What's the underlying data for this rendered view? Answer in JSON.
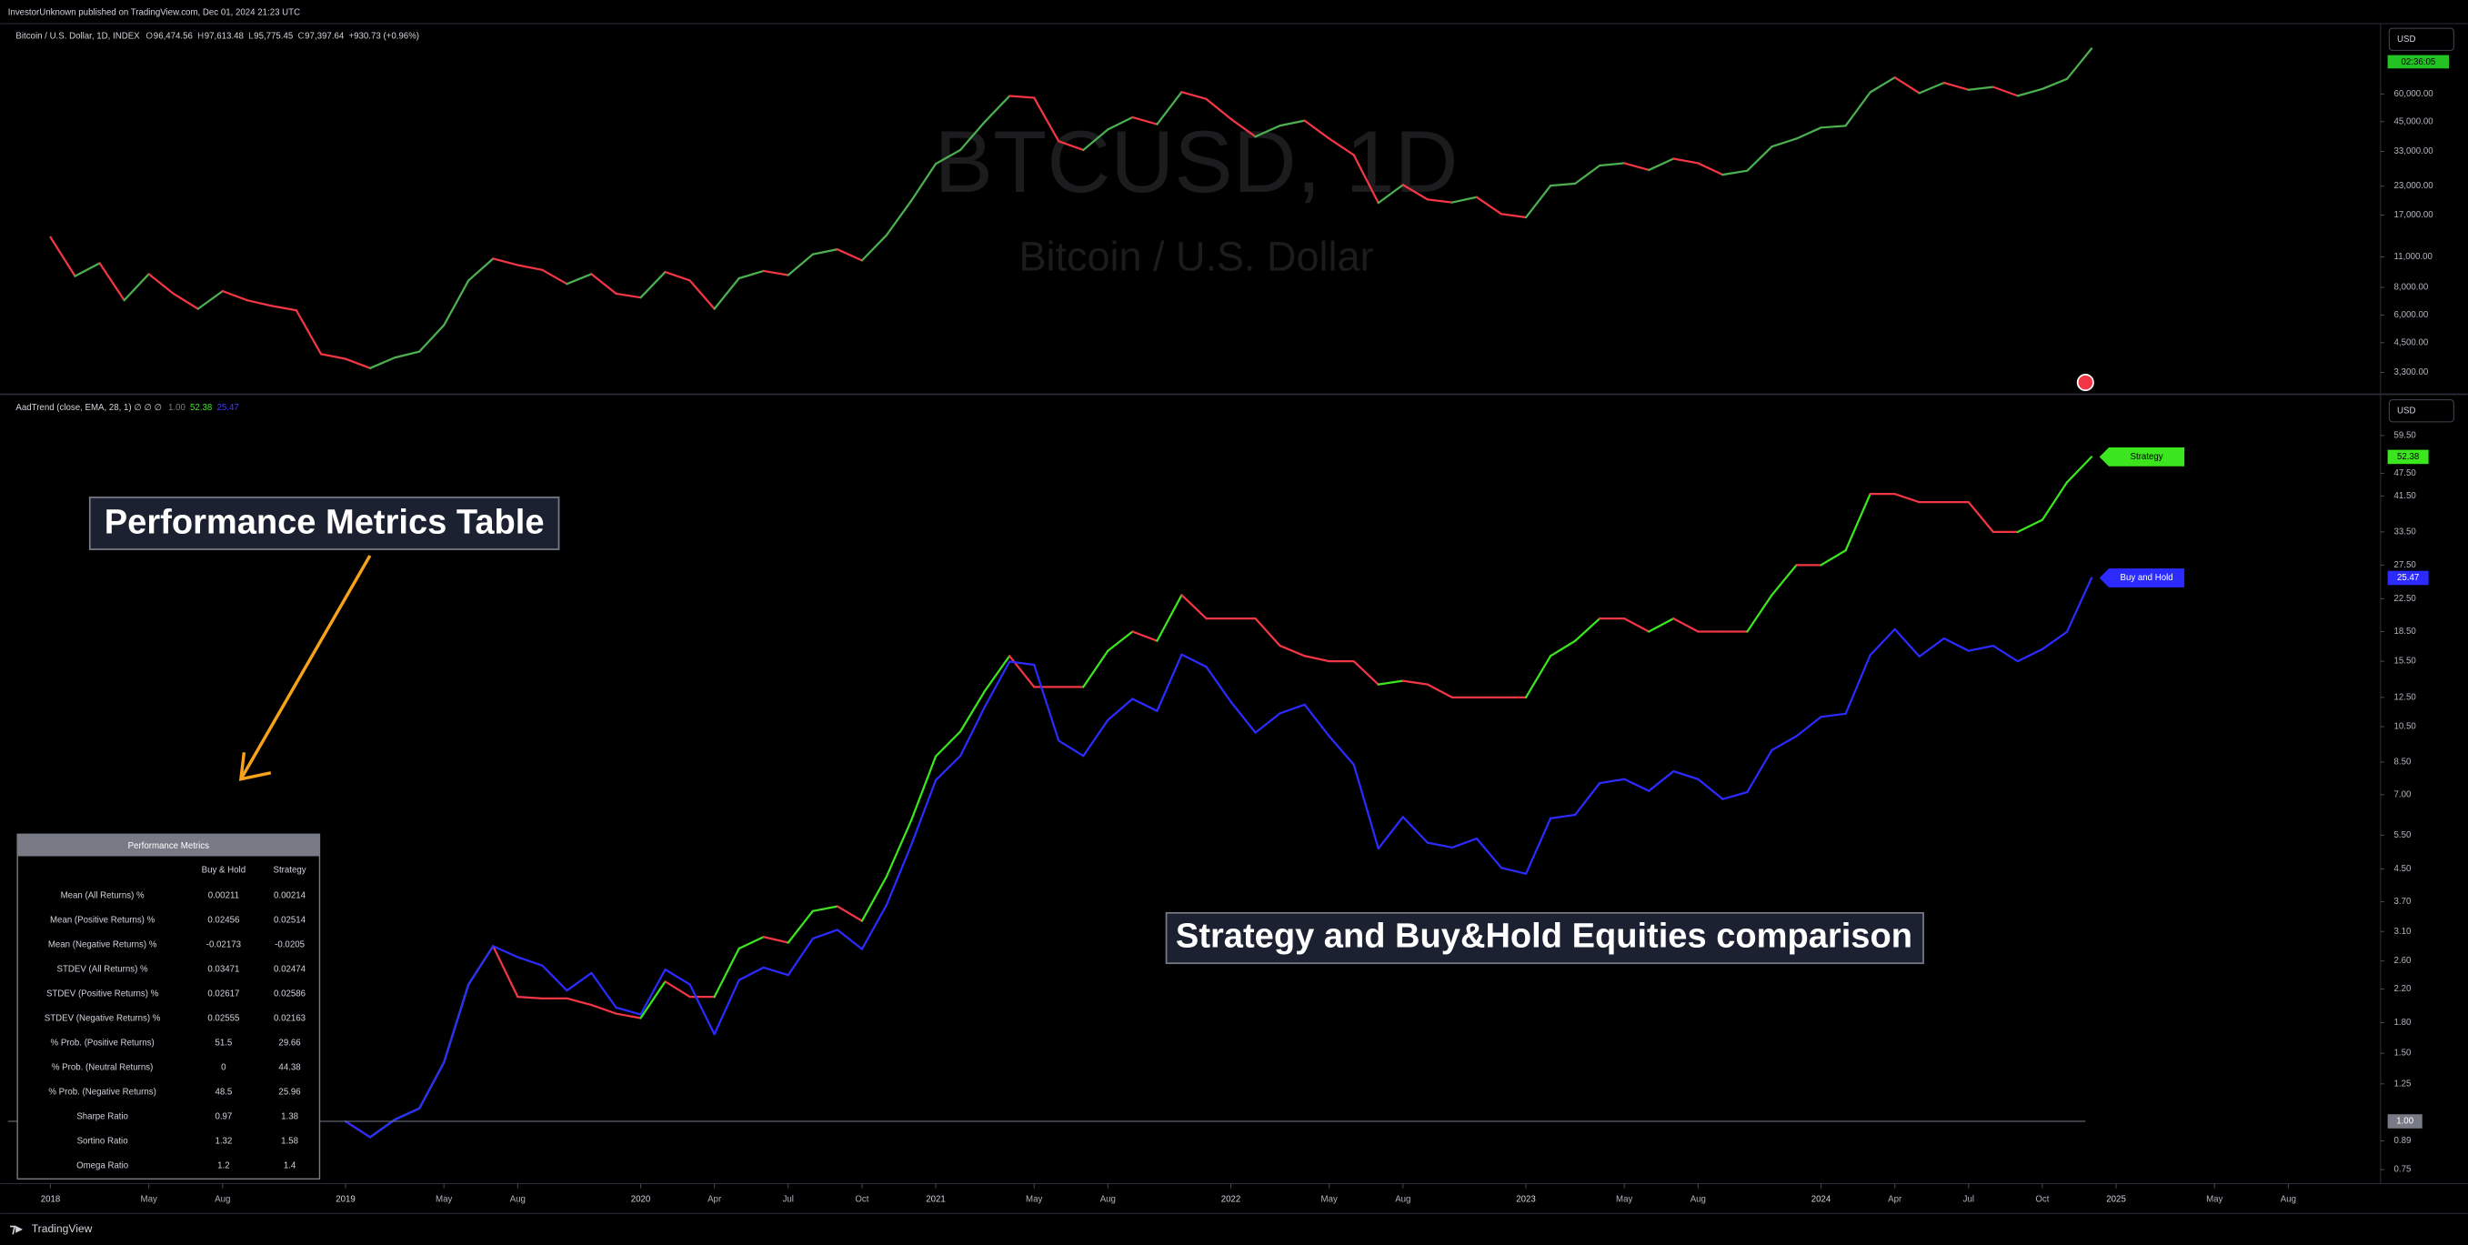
{
  "header": {
    "text": "InvestorUnknown published on TradingView.com, Dec 01, 2024 21:23 UTC"
  },
  "footer": {
    "brand": "TradingView"
  },
  "currency": "USD",
  "countdown": "02:36:05",
  "annotations": [
    {
      "text": "Performance Metrics Table"
    },
    {
      "text": "Strategy and Buy&Hold Equities comparison"
    }
  ],
  "table": {
    "title": "Performance Metrics",
    "columns": [
      "Buy & Hold",
      "Strategy"
    ],
    "rows": [
      [
        "Mean (All Returns) %",
        "0.00211",
        "0.00214"
      ],
      [
        "Mean (Positive Returns) %",
        "0.02456",
        "0.02514"
      ],
      [
        "Mean (Negative Returns) %",
        "-0.02173",
        "-0.0205"
      ],
      [
        "STDEV (All Returns) %",
        "0.03471",
        "0.02474"
      ],
      [
        "STDEV (Positive Returns) %",
        "0.02617",
        "0.02586"
      ],
      [
        "STDEV (Negative Returns) %",
        "0.02555",
        "0.02163"
      ],
      [
        "% Prob. (Positive Returns)",
        "51.5",
        "29.66"
      ],
      [
        "% Prob. (Neutral Returns)",
        "0",
        "44.38"
      ],
      [
        "% Prob. (Negative Returns)",
        "48.5",
        "25.96"
      ],
      [
        "Sharpe Ratio",
        "0.97",
        "1.38"
      ],
      [
        "Sortino Ratio",
        "1.32",
        "1.58"
      ],
      [
        "Omega Ratio",
        "1.2",
        "1.4"
      ]
    ]
  },
  "chart_data": [
    {
      "type": "line",
      "title": "Bitcoin / U.S. Dollar, 1D, INDEX",
      "ohlc": [
        {
          "key": "O",
          "value": "96,474.56"
        },
        {
          "key": "H",
          "value": "97,613.48"
        },
        {
          "key": "L",
          "value": "95,775.45"
        },
        {
          "key": "C",
          "value": "97,397.64"
        }
      ],
      "change": "+930.73 (+0.96%)",
      "watermark": "BTCUSD, 1D",
      "subtitle": "Bitcoin / U.S. Dollar",
      "log_scale": true,
      "xlim": [
        "2017-11",
        "2025-11"
      ],
      "ylim": [
        2650,
        125000
      ],
      "yticks": [
        {
          "value": 3300,
          "label": "3,300.00"
        },
        {
          "value": 4500,
          "label": "4,500.00"
        },
        {
          "value": 6000,
          "label": "6,000.00"
        },
        {
          "value": 8000,
          "label": "8,000.00"
        },
        {
          "value": 11000,
          "label": "11,000.00"
        },
        {
          "value": 17000,
          "label": "17,000.00"
        },
        {
          "value": 23000,
          "label": "23,000.00"
        },
        {
          "value": 33000,
          "label": "33,000.00"
        },
        {
          "value": 45000,
          "label": "45,000.00"
        },
        {
          "value": 60000,
          "label": "60,000.00"
        }
      ],
      "x": [
        "2018-01",
        "2018-02",
        "2018-03",
        "2018-04",
        "2018-05",
        "2018-06",
        "2018-07",
        "2018-08",
        "2018-09",
        "2018-10",
        "2018-11",
        "2018-12",
        "2019-01",
        "2019-02",
        "2019-03",
        "2019-04",
        "2019-05",
        "2019-06",
        "2019-07",
        "2019-08",
        "2019-09",
        "2019-10",
        "2019-11",
        "2019-12",
        "2020-01",
        "2020-02",
        "2020-03",
        "2020-04",
        "2020-05",
        "2020-06",
        "2020-07",
        "2020-08",
        "2020-09",
        "2020-10",
        "2020-11",
        "2020-12",
        "2021-01",
        "2021-02",
        "2021-03",
        "2021-04",
        "2021-05",
        "2021-06",
        "2021-07",
        "2021-08",
        "2021-09",
        "2021-10",
        "2021-11",
        "2021-12",
        "2022-01",
        "2022-02",
        "2022-03",
        "2022-04",
        "2022-05",
        "2022-06",
        "2022-07",
        "2022-08",
        "2022-09",
        "2022-10",
        "2022-11",
        "2022-12",
        "2023-01",
        "2023-02",
        "2023-03",
        "2023-04",
        "2023-05",
        "2023-06",
        "2023-07",
        "2023-08",
        "2023-09",
        "2023-10",
        "2023-11",
        "2023-12",
        "2024-01",
        "2024-02",
        "2024-03",
        "2024-04",
        "2024-05",
        "2024-06",
        "2024-07",
        "2024-08",
        "2024-09",
        "2024-10",
        "2024-11",
        "2024-12"
      ],
      "series": [
        {
          "color": "#4caf50",
          "down_color": "#f23645",
          "values": [
            13500,
            9000,
            10300,
            7000,
            9200,
            7500,
            6400,
            7700,
            7000,
            6600,
            6300,
            4000,
            3800,
            3450,
            3850,
            4100,
            5400,
            8600,
            10800,
            10100,
            9600,
            8300,
            9200,
            7500,
            7200,
            9400,
            8600,
            6400,
            8800,
            9500,
            9100,
            11300,
            11900,
            10600,
            13800,
            19700,
            29000,
            33500,
            45000,
            58800,
            57700,
            36700,
            33500,
            41500,
            47100,
            43800,
            61300,
            57000,
            46300,
            38500,
            43200,
            45500,
            37700,
            31800,
            19300,
            23300,
            20000,
            19400,
            20500,
            17200,
            16600,
            23100,
            23600,
            28500,
            29200,
            27200,
            30600,
            29200,
            25900,
            27000,
            34700,
            37700,
            42300,
            43100,
            61100,
            71300,
            60600,
            67500,
            62700,
            64600,
            58900,
            63300,
            70200,
            96400
          ]
        }
      ]
    },
    {
      "type": "line",
      "title": "AadTrend (close, EMA, 28, 1) ∅ ∅ ∅",
      "log_scale": true,
      "baseline": {
        "value": 1,
        "label": "1.00"
      },
      "xlim": [
        "2017-11",
        "2025-11"
      ],
      "ylim": [
        0.69,
        75
      ],
      "yticks": [
        0.75,
        0.89,
        1.25,
        {
          "value": 1.5,
          "label": "1.50"
        },
        {
          "value": 1.8,
          "label": "1.80"
        },
        {
          "value": 2.2,
          "label": "2.20"
        },
        {
          "value": 2.6,
          "label": "2.60"
        },
        {
          "value": 3.1,
          "label": "3.10"
        },
        {
          "value": 3.7,
          "label": "3.70"
        },
        {
          "value": 4.5,
          "label": "4.50"
        },
        {
          "value": 5.5,
          "label": "5.50"
        },
        {
          "value": 7,
          "label": "7.00"
        },
        {
          "value": 8.5,
          "label": "8.50"
        },
        {
          "value": 10.5,
          "label": "10.50"
        },
        {
          "value": 12.5,
          "label": "12.50"
        },
        {
          "value": 15.5,
          "label": "15.50"
        },
        {
          "value": 18.5,
          "label": "18.50"
        },
        {
          "value": 22.5,
          "label": "22.50"
        },
        {
          "value": 27.5,
          "label": "27.50"
        },
        {
          "value": 33.5,
          "label": "33.50"
        },
        {
          "value": 41.5,
          "label": "41.50"
        },
        {
          "value": 47.5,
          "label": "47.50"
        },
        {
          "value": 59.5,
          "label": "59.50"
        }
      ],
      "xticks": [
        {
          "value": "2018-01",
          "label": "2018"
        },
        {
          "value": "2018-05",
          "label": "May"
        },
        {
          "value": "2018-08",
          "label": "Aug"
        },
        {
          "value": "2019-01",
          "label": "2019"
        },
        {
          "value": "2019-05",
          "label": "May"
        },
        {
          "value": "2019-08",
          "label": "Aug"
        },
        {
          "value": "2020-01",
          "label": "2020"
        },
        {
          "value": "2020-04",
          "label": "Apr"
        },
        {
          "value": "2020-07",
          "label": "Jul"
        },
        {
          "value": "2020-10",
          "label": "Oct"
        },
        {
          "value": "2021-01",
          "label": "2021"
        },
        {
          "value": "2021-05",
          "label": "May"
        },
        {
          "value": "2021-08",
          "label": "Aug"
        },
        {
          "value": "2022-01",
          "label": "2022"
        },
        {
          "value": "2022-05",
          "label": "May"
        },
        {
          "value": "2022-08",
          "label": "Aug"
        },
        {
          "value": "2023-01",
          "label": "2023"
        },
        {
          "value": "2023-05",
          "label": "May"
        },
        {
          "value": "2023-08",
          "label": "Aug"
        },
        {
          "value": "2024-01",
          "label": "2024"
        },
        {
          "value": "2024-04",
          "label": "Apr"
        },
        {
          "value": "2024-07",
          "label": "Jul"
        },
        {
          "value": "2024-10",
          "label": "Oct"
        },
        {
          "value": "2025-01",
          "label": "2025"
        },
        {
          "value": "2025-05",
          "label": "May"
        },
        {
          "value": "2025-08",
          "label": "Aug"
        }
      ],
      "x": [
        "2019-01",
        "2019-02",
        "2019-03",
        "2019-04",
        "2019-05",
        "2019-06",
        "2019-07",
        "2019-08",
        "2019-09",
        "2019-10",
        "2019-11",
        "2019-12",
        "2020-01",
        "2020-02",
        "2020-03",
        "2020-04",
        "2020-05",
        "2020-06",
        "2020-07",
        "2020-08",
        "2020-09",
        "2020-10",
        "2020-11",
        "2020-12",
        "2021-01",
        "2021-02",
        "2021-03",
        "2021-04",
        "2021-05",
        "2021-06",
        "2021-07",
        "2021-08",
        "2021-09",
        "2021-10",
        "2021-11",
        "2021-12",
        "2022-01",
        "2022-02",
        "2022-03",
        "2022-04",
        "2022-05",
        "2022-06",
        "2022-07",
        "2022-08",
        "2022-09",
        "2022-10",
        "2022-11",
        "2022-12",
        "2023-01",
        "2023-02",
        "2023-03",
        "2023-04",
        "2023-05",
        "2023-06",
        "2023-07",
        "2023-08",
        "2023-09",
        "2023-10",
        "2023-11",
        "2023-12",
        "2024-01",
        "2024-02",
        "2024-03",
        "2024-04",
        "2024-05",
        "2024-06",
        "2024-07",
        "2024-08",
        "2024-09",
        "2024-10",
        "2024-11",
        "2024-12"
      ],
      "series": [
        {
          "name": "Strategy",
          "color": "#3ce61e",
          "down_color": "#f23645",
          "values": [
            1,
            0.91,
            1.01,
            1.08,
            1.42,
            2.26,
            2.84,
            2.1,
            2.08,
            2.08,
            2,
            1.9,
            1.85,
            2.3,
            2.1,
            2.1,
            2.8,
            3,
            2.9,
            3.5,
            3.6,
            3.3,
            4.3,
            6,
            8.8,
            10.2,
            13,
            16,
            13.3,
            13.3,
            13.3,
            16.5,
            18.5,
            17.5,
            23,
            20,
            20,
            20,
            17,
            16,
            15.5,
            15.5,
            13.5,
            13.8,
            13.5,
            12.5,
            12.5,
            12.5,
            12.5,
            16,
            17.5,
            20,
            20,
            18.5,
            20,
            18.5,
            18.5,
            18.5,
            23,
            27.5,
            27.5,
            30,
            42,
            42,
            40,
            40,
            40,
            33.5,
            33.5,
            36,
            45,
            52.38
          ]
        },
        {
          "name": "Buy and Hold",
          "color": "#2b2bff",
          "values": [
            1,
            0.91,
            1.01,
            1.08,
            1.42,
            2.26,
            2.84,
            2.66,
            2.53,
            2.18,
            2.42,
            1.97,
            1.89,
            2.47,
            2.26,
            1.68,
            2.32,
            2.5,
            2.39,
            2.97,
            3.13,
            2.79,
            3.63,
            5.18,
            7.63,
            8.82,
            11.84,
            15.47,
            15.18,
            9.66,
            8.82,
            10.92,
            12.39,
            11.53,
            16.13,
            15,
            12.18,
            10.13,
            11.37,
            11.97,
            9.92,
            8.37,
            5.08,
            6.13,
            5.26,
            5.11,
            5.39,
            4.53,
            4.37,
            6.08,
            6.21,
            7.5,
            7.68,
            7.16,
            8.05,
            7.68,
            6.82,
            7.11,
            9.13,
            9.92,
            11.13,
            11.34,
            16.08,
            18.76,
            15.95,
            17.76,
            16.5,
            17,
            15.5,
            16.66,
            18.47,
            25.47
          ]
        }
      ]
    }
  ]
}
